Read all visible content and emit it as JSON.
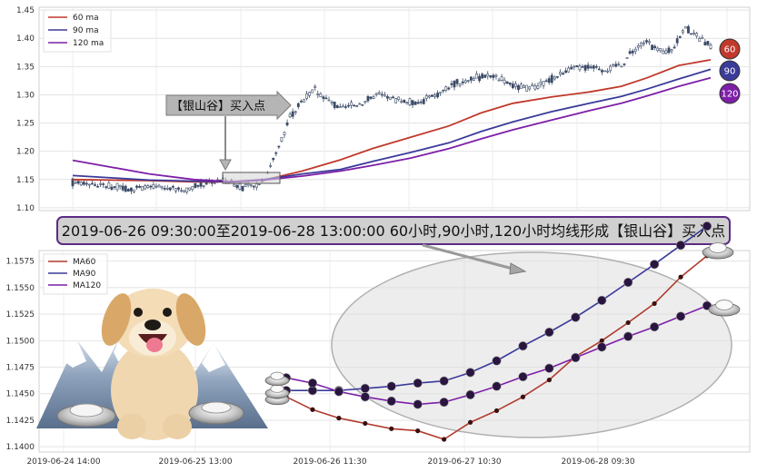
{
  "chart_data": [
    {
      "type": "candlestick",
      "title": "",
      "ylim": [
        1.095,
        1.455
      ],
      "yticks": [
        "1.10",
        "1.15",
        "1.20",
        "1.25",
        "1.30",
        "1.35",
        "1.40",
        "1.45"
      ],
      "grid": true,
      "legend_position": "top-left",
      "series": [
        {
          "name": "60 ma",
          "color": "#c0392b"
        },
        {
          "name": "90 ma",
          "color": "#3b3b9a"
        },
        {
          "name": "120 ma",
          "color": "#7d1fa8"
        }
      ],
      "ma_curves": {
        "ma60": [
          [
            0,
            1.15
          ],
          [
            0.06,
            1.149
          ],
          [
            0.12,
            1.148
          ],
          [
            0.19,
            1.146
          ],
          [
            0.25,
            1.146
          ],
          [
            0.3,
            1.149
          ],
          [
            0.36,
            1.165
          ],
          [
            0.42,
            1.185
          ],
          [
            0.47,
            1.205
          ],
          [
            0.53,
            1.225
          ],
          [
            0.59,
            1.245
          ],
          [
            0.64,
            1.268
          ],
          [
            0.69,
            1.285
          ],
          [
            0.75,
            1.296
          ],
          [
            0.81,
            1.305
          ],
          [
            0.86,
            1.315
          ],
          [
            0.9,
            1.33
          ],
          [
            0.95,
            1.352
          ],
          [
            1.0,
            1.362
          ]
        ],
        "ma90": [
          [
            0,
            1.157
          ],
          [
            0.06,
            1.153
          ],
          [
            0.12,
            1.149
          ],
          [
            0.19,
            1.147
          ],
          [
            0.25,
            1.146
          ],
          [
            0.3,
            1.15
          ],
          [
            0.36,
            1.16
          ],
          [
            0.42,
            1.168
          ],
          [
            0.47,
            1.182
          ],
          [
            0.53,
            1.198
          ],
          [
            0.59,
            1.215
          ],
          [
            0.64,
            1.235
          ],
          [
            0.69,
            1.252
          ],
          [
            0.75,
            1.27
          ],
          [
            0.81,
            1.285
          ],
          [
            0.86,
            1.297
          ],
          [
            0.9,
            1.31
          ],
          [
            0.95,
            1.328
          ],
          [
            1.0,
            1.345
          ]
        ],
        "ma120": [
          [
            0,
            1.184
          ],
          [
            0.06,
            1.172
          ],
          [
            0.12,
            1.16
          ],
          [
            0.19,
            1.15
          ],
          [
            0.25,
            1.146
          ],
          [
            0.3,
            1.149
          ],
          [
            0.36,
            1.156
          ],
          [
            0.42,
            1.165
          ],
          [
            0.47,
            1.175
          ],
          [
            0.53,
            1.188
          ],
          [
            0.59,
            1.205
          ],
          [
            0.64,
            1.222
          ],
          [
            0.69,
            1.238
          ],
          [
            0.75,
            1.255
          ],
          [
            0.81,
            1.272
          ],
          [
            0.86,
            1.285
          ],
          [
            0.9,
            1.298
          ],
          [
            0.95,
            1.315
          ],
          [
            1.0,
            1.33
          ]
        ]
      },
      "price_path": [
        [
          0,
          1.145
        ],
        [
          0.03,
          1.142
        ],
        [
          0.06,
          1.138
        ],
        [
          0.09,
          1.133
        ],
        [
          0.12,
          1.136
        ],
        [
          0.15,
          1.135
        ],
        [
          0.18,
          1.13
        ],
        [
          0.21,
          1.145
        ],
        [
          0.24,
          1.15
        ],
        [
          0.26,
          1.138
        ],
        [
          0.28,
          1.135
        ],
        [
          0.3,
          1.15
        ],
        [
          0.32,
          1.2
        ],
        [
          0.34,
          1.26
        ],
        [
          0.36,
          1.29
        ],
        [
          0.38,
          1.31
        ],
        [
          0.4,
          1.29
        ],
        [
          0.42,
          1.275
        ],
        [
          0.45,
          1.285
        ],
        [
          0.48,
          1.3
        ],
        [
          0.51,
          1.29
        ],
        [
          0.54,
          1.285
        ],
        [
          0.57,
          1.3
        ],
        [
          0.6,
          1.32
        ],
        [
          0.63,
          1.33
        ],
        [
          0.66,
          1.335
        ],
        [
          0.69,
          1.315
        ],
        [
          0.72,
          1.31
        ],
        [
          0.75,
          1.328
        ],
        [
          0.78,
          1.345
        ],
        [
          0.81,
          1.35
        ],
        [
          0.84,
          1.345
        ],
        [
          0.86,
          1.355
        ],
        [
          0.88,
          1.38
        ],
        [
          0.9,
          1.395
        ],
        [
          0.92,
          1.375
        ],
        [
          0.94,
          1.38
        ],
        [
          0.96,
          1.42
        ],
        [
          0.98,
          1.4
        ],
        [
          1.0,
          1.385
        ]
      ],
      "badges": [
        "60",
        "90",
        "120"
      ],
      "annotation": "【银山谷】买入点"
    },
    {
      "type": "line",
      "title": "",
      "ylim": [
        1.1395,
        1.1585
      ],
      "yticks": [
        "1.1400",
        "1.1425",
        "1.1450",
        "1.1475",
        "1.1500",
        "1.1525",
        "1.1550",
        "1.1575"
      ],
      "xticks": [
        "2019-06-24 14:00",
        "2019-06-25 13:00",
        "2019-06-26 11:30",
        "2019-06-27 10:30",
        "2019-06-28 09:30"
      ],
      "grid": true,
      "legend_position": "top-left",
      "series": [
        {
          "name": "MA60",
          "color": "#b03a2e",
          "values": [
            1.1447,
            1.1435,
            1.1427,
            1.1422,
            1.1417,
            1.1415,
            1.1407,
            1.1423,
            1.1434,
            1.1447,
            1.1463,
            1.1485,
            1.15,
            1.1517,
            1.1535,
            1.156,
            1.158
          ]
        },
        {
          "name": "MA90",
          "color": "#3a3a9a",
          "values": [
            1.1453,
            1.1453,
            1.1453,
            1.1455,
            1.1457,
            1.146,
            1.1462,
            1.147,
            1.1481,
            1.1495,
            1.1508,
            1.1522,
            1.1538,
            1.1555,
            1.1572,
            1.159,
            1.1608
          ]
        },
        {
          "name": "MA120",
          "color": "#7d1fa8",
          "values": [
            1.1465,
            1.146,
            1.1452,
            1.1447,
            1.1443,
            1.144,
            1.1442,
            1.1449,
            1.1457,
            1.1466,
            1.1474,
            1.1484,
            1.1494,
            1.1504,
            1.1513,
            1.1523,
            1.1533
          ]
        }
      ]
    }
  ],
  "caption": "2019-06-26 09:30:00至2019-06-28 13:00:00 60小时,90小时,120小时均线形成【银山谷】买入点"
}
